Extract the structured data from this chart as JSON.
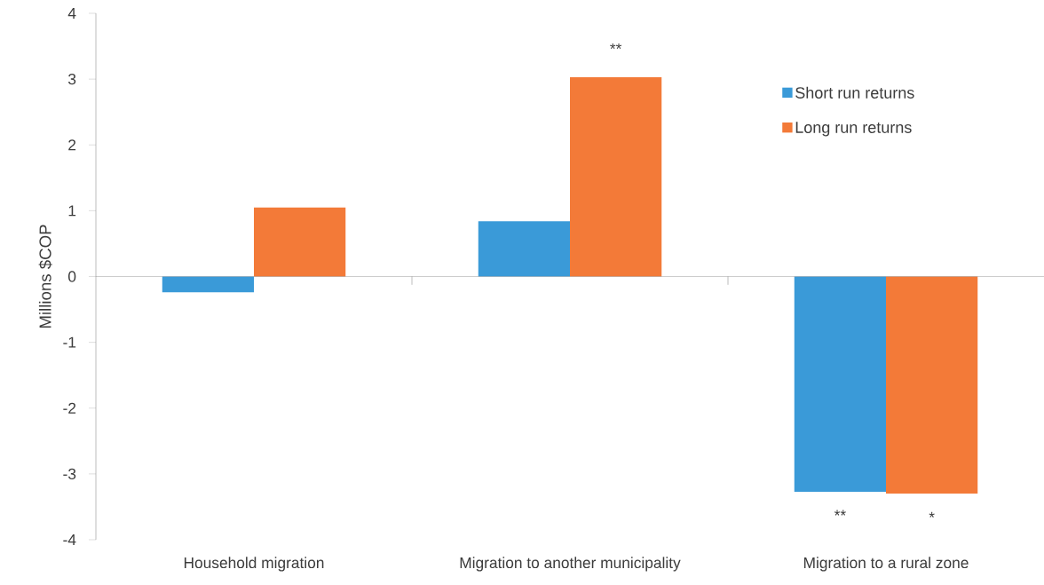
{
  "chart_data": {
    "type": "bar",
    "ylabel": "Millions $COP",
    "categories": [
      "Household migration",
      "Migration to another municipality",
      "Migration to a rural zone"
    ],
    "series": [
      {
        "name": "Short run returns",
        "color": "#3a9ad8",
        "values": [
          -0.24,
          0.84,
          -3.27
        ]
      },
      {
        "name": "Long run returns",
        "color": "#f37a38",
        "values": [
          1.05,
          3.03,
          -3.3
        ]
      }
    ],
    "ylim": [
      -4,
      4
    ],
    "yticks": [
      -4,
      -3,
      -2,
      -1,
      0,
      1,
      2,
      3,
      4
    ],
    "legend": "top right",
    "annotations": [
      "**",
      "**",
      "*"
    ]
  }
}
